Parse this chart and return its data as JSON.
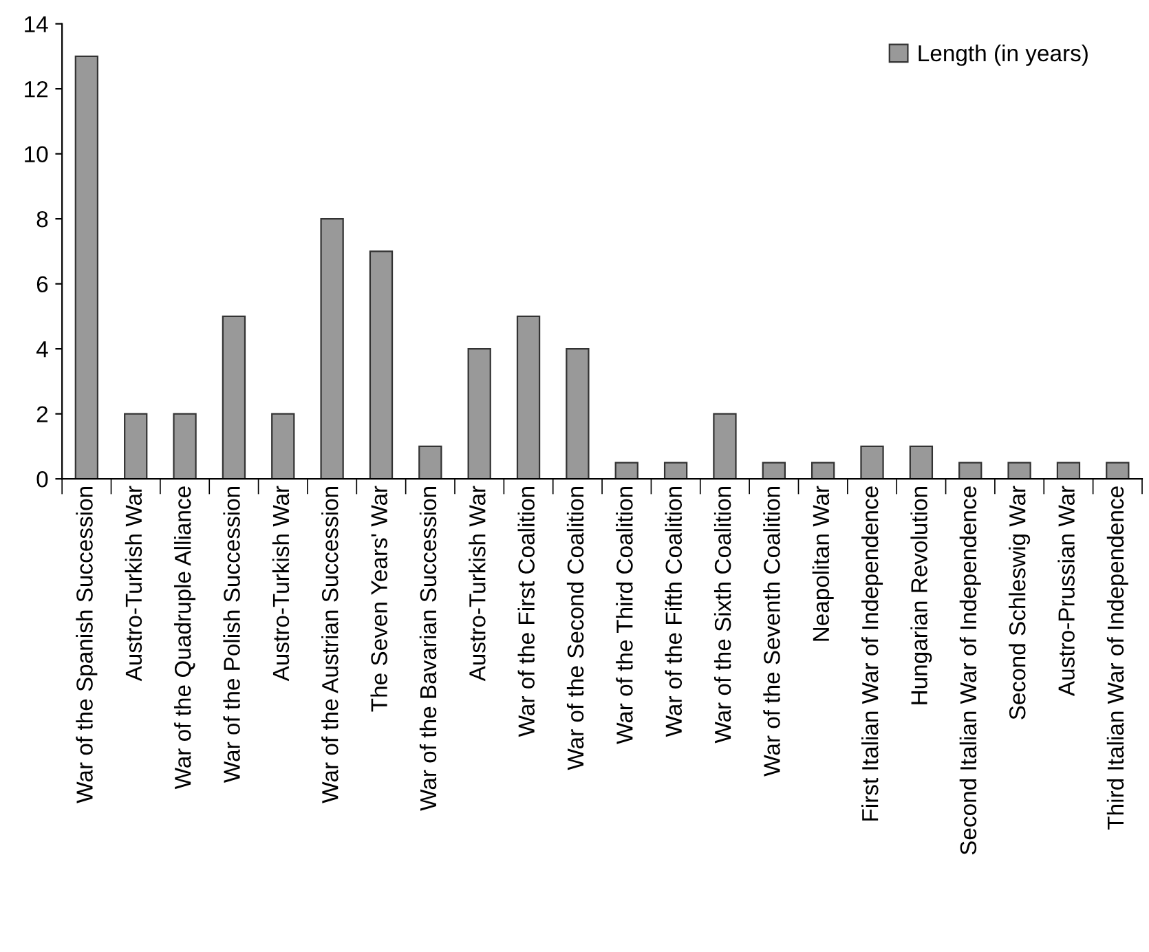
{
  "chart_data": {
    "type": "bar",
    "categories": [
      "War of the Spanish Succession",
      "Austro-Turkish War",
      "War of the Quadruple Alliance",
      "War of the Polish Succession",
      "Austro-Turkish War",
      "War of the Austrian Succession",
      "The Seven Years' War",
      "War of the Bavarian Succession",
      "Austro-Turkish War",
      "War of the First Coalition",
      "War of the Second Coalition",
      "War of the Third Coalition",
      "War of the Fifth Coalition",
      "War of the Sixth Coalition",
      "War of the Seventh Coalition",
      "Neapolitan War",
      "First Italian War of Independence",
      "Hungarian Revolution",
      "Second Italian War of Independence",
      "Second Schleswig War",
      "Austro-Prussian War",
      "Third Italian War of Independence"
    ],
    "series": [
      {
        "name": "Length (in years)",
        "color": "#999999",
        "values": [
          13,
          2,
          2,
          5,
          2,
          8,
          7,
          1,
          4,
          5,
          4,
          0.5,
          0.5,
          2,
          0.5,
          0.5,
          1,
          1,
          0.5,
          0.5,
          0.5,
          0.5
        ]
      }
    ],
    "ylim": [
      0,
      14
    ],
    "yticks": [
      0,
      2,
      4,
      6,
      8,
      10,
      12,
      14
    ],
    "grid": false,
    "legend": "top right"
  }
}
